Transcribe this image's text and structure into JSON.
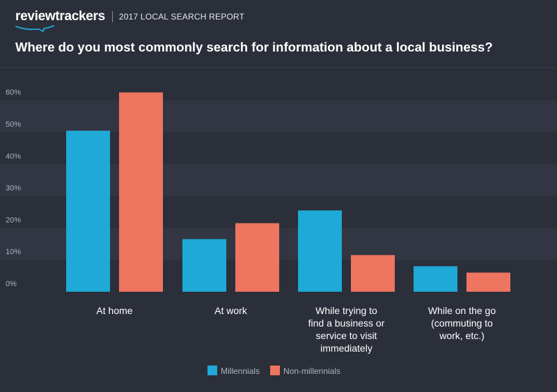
{
  "header": {
    "brand": "reviewtrackers",
    "report": "2017 LOCAL SEARCH REPORT"
  },
  "colors": {
    "background": "#2b2f3a",
    "band": "#323642",
    "millennials": "#1fa9d6",
    "non_millennials": "#ee7560"
  },
  "chart_data": {
    "type": "bar",
    "title": "Where do you most commonly search for information about a local business?",
    "categories": [
      [
        "At home"
      ],
      [
        "At work"
      ],
      [
        "While trying to",
        "find a business or",
        "service to visit",
        "immediately"
      ],
      [
        "While on the go",
        "(commuting to",
        "work, etc.)"
      ]
    ],
    "series": [
      {
        "name": "Millennials",
        "values": [
          50.5,
          16.5,
          25.5,
          8
        ]
      },
      {
        "name": "Non-millennials",
        "values": [
          62.5,
          21.5,
          11.5,
          6
        ]
      }
    ],
    "y_ticks": [
      "0%",
      "10%",
      "20%",
      "30%",
      "40%",
      "50%",
      "60%"
    ],
    "ylim": [
      0,
      65
    ],
    "grid": "alternating bands",
    "legend_position": "bottom-center"
  }
}
